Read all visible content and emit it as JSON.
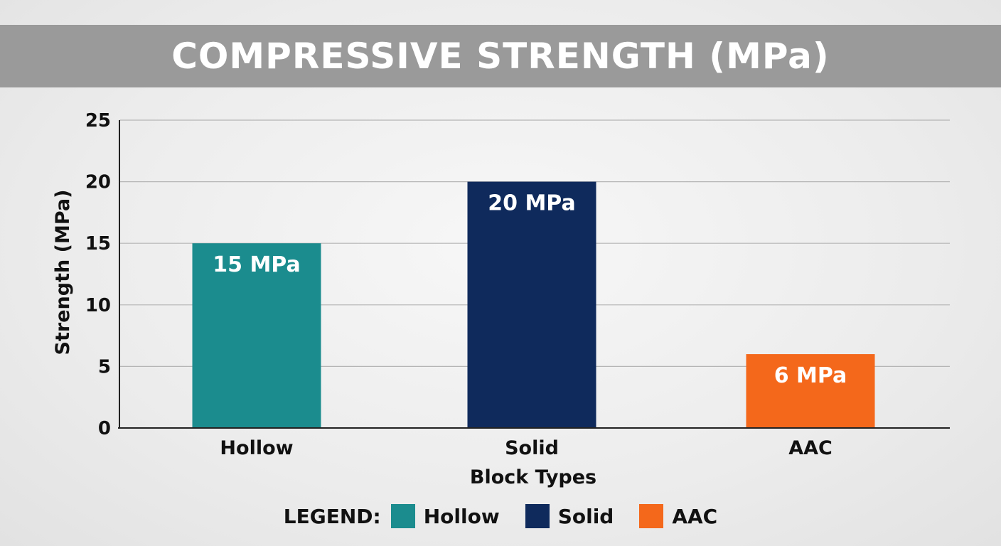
{
  "chart_data": {
    "type": "bar",
    "title": "COMPRESSIVE STRENGTH (MPa)",
    "xlabel": "Block Types",
    "ylabel": "Strength (MPa)",
    "ylim": [
      0,
      25
    ],
    "yticks": [
      "0",
      "5",
      "10",
      "15",
      "20",
      "25"
    ],
    "categories": [
      "Hollow",
      "Solid",
      "AAC"
    ],
    "values": [
      15,
      20,
      6
    ],
    "data_labels": [
      "15 MPa",
      "20 MPa",
      "6 MPa"
    ],
    "colors": [
      "#1b8c8e",
      "#0f2a5c",
      "#f4681b"
    ],
    "grid": true,
    "legend": {
      "title": "LEGEND:",
      "placement": "bottom",
      "items": [
        {
          "label": "Hollow",
          "color": "#1b8c8e"
        },
        {
          "label": "Solid",
          "color": "#0f2a5c"
        },
        {
          "label": "AAC",
          "color": "#f4681b"
        }
      ]
    }
  }
}
